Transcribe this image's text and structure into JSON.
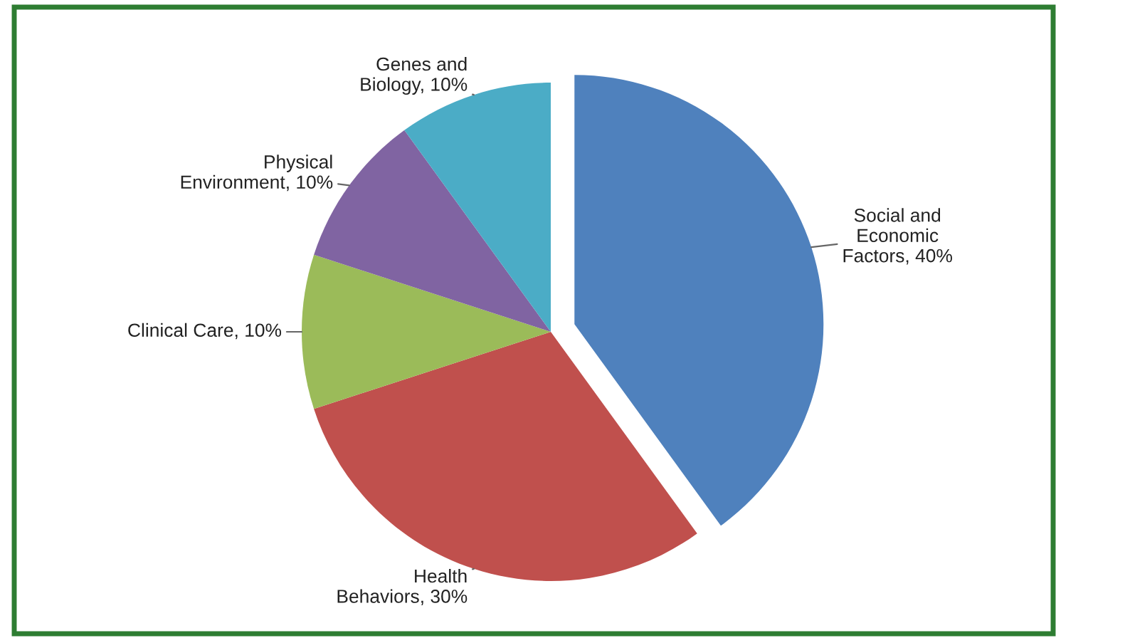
{
  "chart_data": {
    "type": "pie",
    "categories": [
      "Social and\nEconomic\nFactors",
      "Health\nBehaviors",
      "Clinical Care",
      "Physical\nEnvironment",
      "Genes and\nBiology"
    ],
    "values": [
      40,
      30,
      10,
      10,
      10
    ],
    "colors": [
      "#4f81bd",
      "#c0504d",
      "#9bbb59",
      "#8064a2",
      "#4bacc6"
    ],
    "value_labels": [
      "40%",
      "30%",
      "10%",
      "10%",
      "10%"
    ]
  }
}
